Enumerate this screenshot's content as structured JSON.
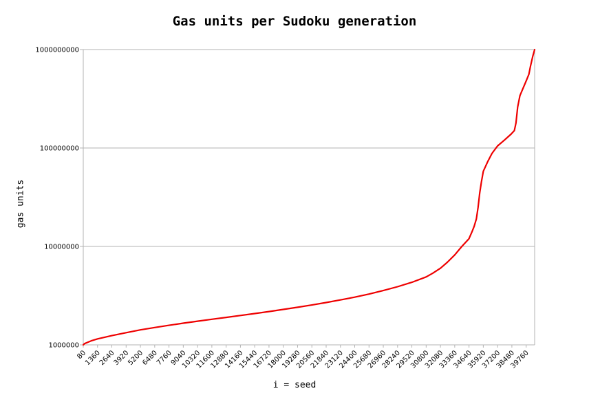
{
  "chart_data": {
    "type": "line",
    "title": "Gas units per Sudoku generation",
    "xlabel": "i = seed",
    "ylabel": "gas units",
    "yscale": "log",
    "ylim": [
      1000000,
      1000000000
    ],
    "xlim": [
      80,
      40520
    ],
    "grid": "horizontal",
    "legend": "none",
    "y_ticks": [
      "1000000",
      "10000000",
      "100000000",
      "1000000000"
    ],
    "x_ticks": [
      "80",
      "1360",
      "2640",
      "3920",
      "5200",
      "6480",
      "7760",
      "9040",
      "10320",
      "11600",
      "12880",
      "14160",
      "15440",
      "16720",
      "18000",
      "19280",
      "20560",
      "21840",
      "23120",
      "24400",
      "25680",
      "26960",
      "28240",
      "29520",
      "30800",
      "32080",
      "33360",
      "34640",
      "35920",
      "37200",
      "38480",
      "39760"
    ],
    "series": [
      {
        "color": "#ee0000",
        "x": [
          80,
          200,
          800,
          1360,
          2640,
          3920,
          5200,
          6480,
          7760,
          9040,
          10320,
          11600,
          12880,
          14160,
          15440,
          16720,
          18000,
          19280,
          20560,
          21840,
          23120,
          24400,
          25680,
          26960,
          28240,
          29520,
          30800,
          31400,
          32080,
          32700,
          33360,
          34000,
          34640,
          34900,
          35100,
          35300,
          35450,
          35600,
          35750,
          35920,
          36300,
          36700,
          37200,
          37800,
          38400,
          38700,
          38850,
          39000,
          39200,
          39500,
          39760,
          40000,
          40150,
          40350,
          40520
        ],
        "y": [
          1000000,
          1030000,
          1100000,
          1150000,
          1240000,
          1330000,
          1420000,
          1500000,
          1580000,
          1660000,
          1740000,
          1820000,
          1900000,
          1990000,
          2080000,
          2180000,
          2290000,
          2410000,
          2540000,
          2690000,
          2860000,
          3050000,
          3280000,
          3560000,
          3900000,
          4320000,
          4900000,
          5350000,
          6000000,
          6900000,
          8200000,
          10000000,
          12000000,
          14000000,
          16000000,
          19000000,
          25000000,
          35000000,
          45000000,
          58000000,
          72000000,
          88000000,
          105000000,
          120000000,
          138000000,
          150000000,
          180000000,
          260000000,
          340000000,
          410000000,
          480000000,
          560000000,
          680000000,
          850000000,
          1000000000
        ]
      }
    ]
  }
}
